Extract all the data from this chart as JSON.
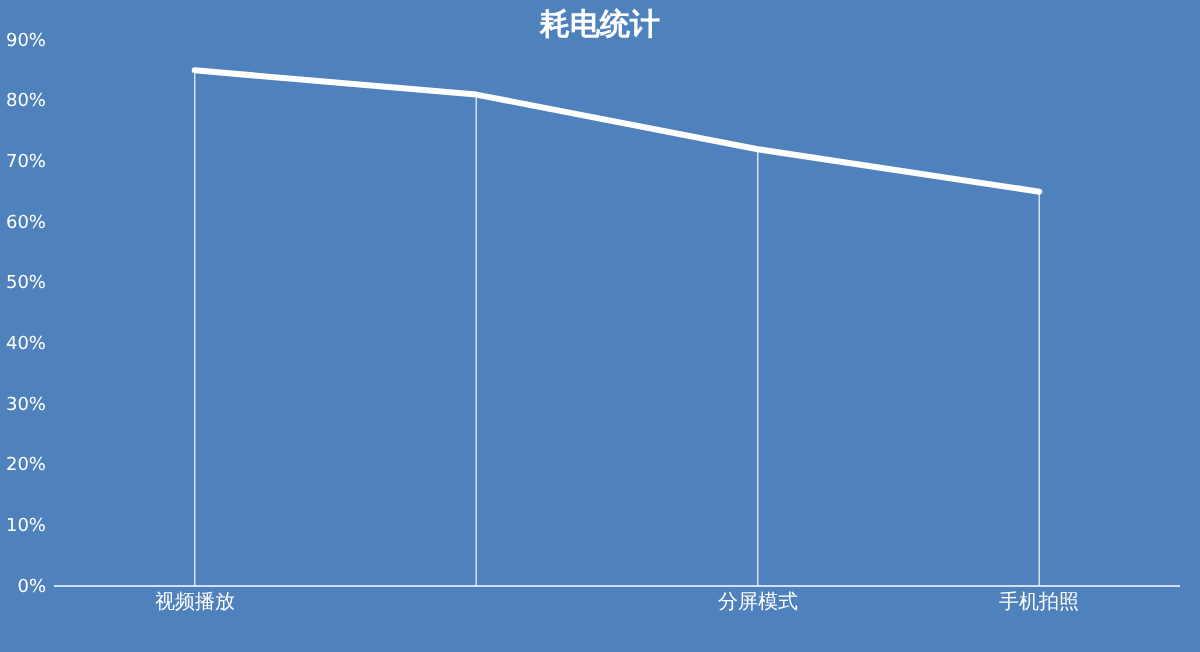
{
  "chart_data": {
    "type": "line",
    "title": "耗电统计",
    "categories": [
      "视频播放",
      null,
      "分屏模式",
      "手机拍照"
    ],
    "series": [
      {
        "color": "#ffffff",
        "values": [
          85,
          81,
          72,
          65
        ]
      }
    ],
    "ylim": [
      0,
      90
    ],
    "yticks": [
      {
        "value": 0,
        "label": "0%"
      },
      {
        "value": 10,
        "label": "10%"
      },
      {
        "value": 20,
        "label": "20%"
      },
      {
        "value": 30,
        "label": "30%"
      },
      {
        "value": 40,
        "label": "40%"
      },
      {
        "value": 50,
        "label": "50%"
      },
      {
        "value": 60,
        "label": "60%"
      },
      {
        "value": 70,
        "label": "70%"
      },
      {
        "value": 80,
        "label": "80%"
      },
      {
        "value": 90,
        "label": "90%"
      }
    ],
    "grid": "x",
    "legend": false,
    "marker": "none",
    "line_style": "solid"
  }
}
